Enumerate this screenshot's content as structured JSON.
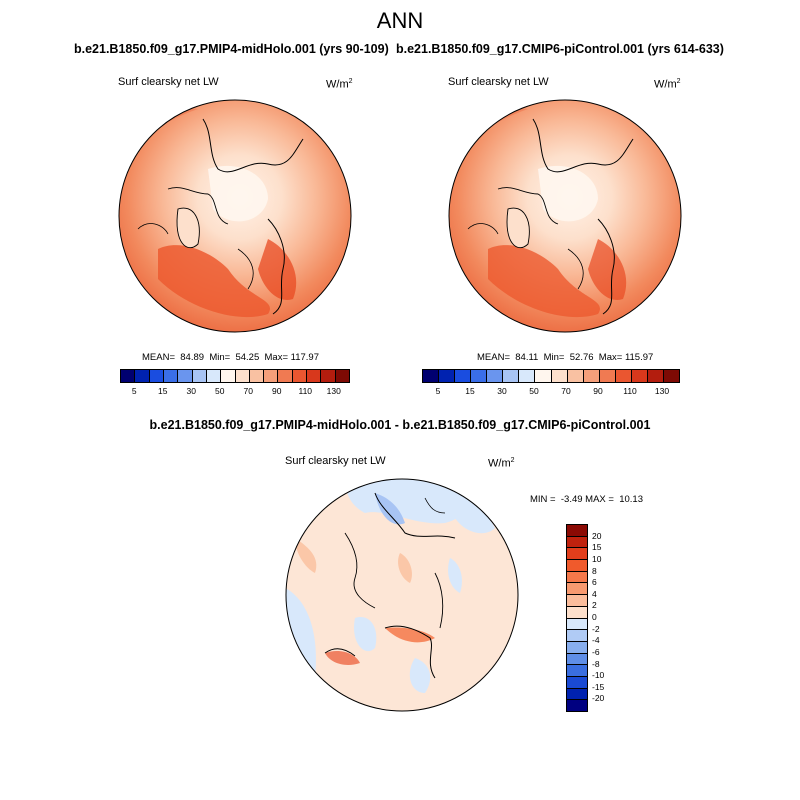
{
  "figure": {
    "title": "ANN",
    "panel1": {
      "case_title": "b.e21.B1850.f09_g17.PMIP4-midHolo.001 (yrs 90-109)",
      "variable": "Surf clearsky net LW",
      "units_base": "W/m",
      "units_exp": "2",
      "stats_label": "MEAN=  84.89  Min=  54.25  Max= 117.97"
    },
    "panel2": {
      "case_title": "b.e21.B1850.f09_g17.CMIP6-piControl.001 (yrs 614-633)",
      "variable": "Surf clearsky net LW",
      "units_base": "W/m",
      "units_exp": "2",
      "stats_label": "MEAN=  84.11  Min=  52.76  Max= 115.97"
    },
    "diff": {
      "case_title": "b.e21.B1850.f09_g17.PMIP4-midHolo.001 - b.e21.B1850.f09_g17.CMIP6-piControl.001",
      "variable": "Surf clearsky net LW",
      "units_base": "W/m",
      "units_exp": "2",
      "minmax_label": "MIN =  -3.49 MAX =  10.13"
    }
  },
  "chart_data": {
    "type": "heatmap",
    "projection": "north polar stereographic",
    "fields": [
      {
        "name": "PMIP4-midHolo.001",
        "mean": 84.89,
        "min": 54.25,
        "max": 117.97
      },
      {
        "name": "CMIP6-piControl.001",
        "mean": 84.11,
        "min": 52.76,
        "max": 115.97
      },
      {
        "name": "difference",
        "min": -3.49,
        "max": 10.13
      }
    ],
    "colorbar_main": {
      "orientation": "horizontal",
      "tick_labels": [
        "5",
        "15",
        "30",
        "50",
        "70",
        "90",
        "110",
        "130"
      ],
      "colors": [
        "#000070",
        "#0022b0",
        "#1a4de0",
        "#3a6ee8",
        "#6a95ee",
        "#a8c4f4",
        "#d8e8fb",
        "#fff6ee",
        "#fde0cc",
        "#f9c1a2",
        "#f59f7a",
        "#f07a52",
        "#ea5630",
        "#d8381c",
        "#b31d0e",
        "#7e0a04"
      ]
    },
    "colorbar_diff": {
      "orientation": "vertical",
      "tick_labels": [
        "20",
        "15",
        "10",
        "8",
        "6",
        "4",
        "2",
        "0",
        "-2",
        "-4",
        "-6",
        "-8",
        "-10",
        "-15",
        "-20"
      ],
      "colors": [
        "#8b0a04",
        "#c0220e",
        "#e23e1c",
        "#f05a2c",
        "#f5784a",
        "#f89a70",
        "#fbbd9c",
        "#fde0cc",
        "#d8e8fb",
        "#b0cbf5",
        "#88aeee",
        "#5f8ee7",
        "#3a6ee0",
        "#1a4ad4",
        "#0022b0",
        "#000080"
      ]
    }
  }
}
